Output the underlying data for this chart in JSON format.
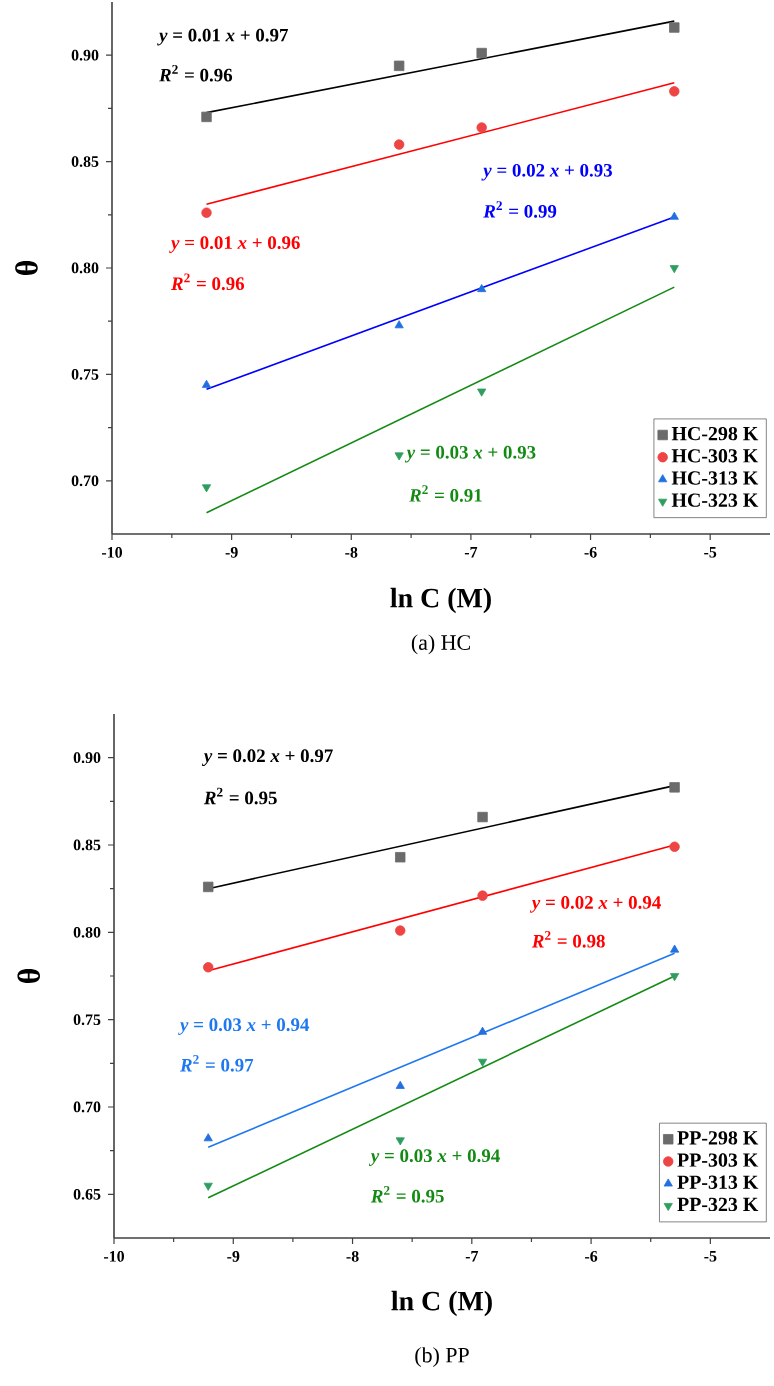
{
  "chart_data": [
    {
      "type": "scatter",
      "title": "(a) HC",
      "xlabel": "**ln C (M)**",
      "ylabel": "**θ**",
      "xlim": [
        -10,
        -4.5
      ],
      "ylim": [
        0.675,
        0.925
      ],
      "xticks": [
        -10,
        -9,
        -8,
        -7,
        -6,
        -5
      ],
      "yticks": [
        {
          "value": 0.7,
          "label": "0.70"
        },
        0.75,
        {
          "value": 0.8,
          "label": "0.80"
        },
        0.85,
        {
          "value": 0.9,
          "label": "0.90"
        }
      ],
      "legend": "bottom right",
      "series": [
        {
          "name": "HC-298 K",
          "color": "#6b6b6b",
          "marker": "square",
          "x": [
            -9.21,
            -7.6,
            -6.91,
            -5.3
          ],
          "values": [
            0.871,
            0.895,
            0.901,
            0.913
          ]
        },
        {
          "name": "HC-303 K",
          "color": "#ee4444",
          "marker": "circle",
          "x": [
            -9.21,
            -7.6,
            -6.91,
            -5.3
          ],
          "values": [
            0.826,
            0.858,
            0.866,
            0.883
          ]
        },
        {
          "name": "HC-313 K",
          "color": "#2070e0",
          "marker": "triangle",
          "x": [
            -9.21,
            -7.6,
            -6.91,
            -5.3
          ],
          "values": [
            0.745,
            0.773,
            0.79,
            0.824
          ]
        },
        {
          "name": "HC-323 K",
          "color": "#2e9e60",
          "marker": "triangle down",
          "x": [
            -9.21,
            -7.6,
            -6.91,
            -5.3
          ],
          "values": [
            0.697,
            0.712,
            0.742,
            0.8
          ]
        },
        {
          "type": "line",
          "color": "#000000",
          "x": [
            -9.21,
            -5.3
          ],
          "values": [
            0.873,
            0.916
          ]
        },
        {
          "type": "line",
          "color": "#ff0000",
          "x": [
            -9.21,
            -5.3
          ],
          "values": [
            0.83,
            0.887
          ]
        },
        {
          "type": "line",
          "color": "#0000ff",
          "x": [
            -9.21,
            -5.3
          ],
          "values": [
            0.743,
            0.824
          ]
        },
        {
          "type": "line",
          "color": "#138a13",
          "x": [
            -9.21,
            -5.3
          ],
          "values": [
            0.685,
            0.791
          ]
        }
      ],
      "annotations": [
        "*y* = 0.01 *x* + 0.97",
        "*R*$^{2}$ = 0.96",
        "*y* = 0.01 *x* + 0.96",
        "*R*$^{2}$ = 0.96",
        "*y* = 0.02 *x* + 0.93",
        "*R*$^{2}$ = 0.99",
        "*y* = 0.03 *x* + 0.93",
        "*R*$^{2}$ = 0.91"
      ]
    },
    {
      "type": "scatter",
      "title": "(b) PP",
      "xlabel": "**ln C (M)**",
      "ylabel": "**θ**",
      "xlim": [
        -10,
        -4.5
      ],
      "ylim": [
        0.625,
        0.925
      ],
      "xticks": [
        -10,
        -9,
        -8,
        -7,
        -6,
        -5
      ],
      "yticks": [
        0.65,
        {
          "value": 0.7,
          "label": "0.70"
        },
        0.75,
        {
          "value": 0.8,
          "label": "0.80"
        },
        0.85,
        {
          "value": 0.9,
          "label": "0.90"
        }
      ],
      "legend": "bottom right",
      "series": [
        {
          "name": "PP-298 K",
          "color": "#6b6b6b",
          "marker": "square",
          "x": [
            -9.21,
            -7.6,
            -6.91,
            -5.3
          ],
          "values": [
            0.826,
            0.843,
            0.866,
            0.883
          ]
        },
        {
          "name": "PP-303 K",
          "color": "#ee4444",
          "marker": "circle",
          "x": [
            -9.21,
            -7.6,
            -6.91,
            -5.3
          ],
          "values": [
            0.78,
            0.801,
            0.821,
            0.849
          ]
        },
        {
          "name": "PP-313 K",
          "color": "#2070e0",
          "marker": "triangle",
          "x": [
            -9.21,
            -7.6,
            -6.91,
            -5.3
          ],
          "values": [
            0.682,
            0.712,
            0.743,
            0.79
          ]
        },
        {
          "name": "PP-323 K",
          "color": "#2e9e60",
          "marker": "triangle down",
          "x": [
            -9.21,
            -7.6,
            -6.91,
            -5.3
          ],
          "values": [
            0.655,
            0.681,
            0.726,
            0.775
          ]
        },
        {
          "type": "line",
          "color": "#000000",
          "x": [
            -9.21,
            -5.3
          ],
          "values": [
            0.825,
            0.884
          ]
        },
        {
          "type": "line",
          "color": "#ff0000",
          "x": [
            -9.21,
            -5.3
          ],
          "values": [
            0.778,
            0.85
          ]
        },
        {
          "type": "line",
          "color": "#1e78f0",
          "x": [
            -9.21,
            -5.3
          ],
          "values": [
            0.677,
            0.788
          ]
        },
        {
          "type": "line",
          "color": "#138a13",
          "x": [
            -9.21,
            -5.3
          ],
          "values": [
            0.648,
            0.775
          ]
        }
      ],
      "annotations": [
        "*y* = 0.02 *x* + 0.97",
        "*R*$^{2}$ = 0.95",
        "*y* = 0.02 *x* + 0.94",
        "*R*$^{2}$ = 0.98",
        "*y* = 0.03 *x* + 0.94",
        "*R*$^{2}$ = 0.97",
        "*y* = 0.03 *x* + 0.94",
        "*R*$^{2}$ = 0.95"
      ]
    }
  ]
}
